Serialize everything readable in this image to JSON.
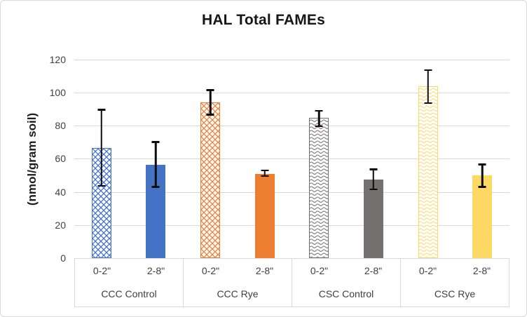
{
  "chart_data": {
    "type": "bar",
    "title": "HAL Total FAMEs",
    "ylabel": "(nmol/gram soil)",
    "ylim": [
      0,
      120
    ],
    "yticks": [
      0,
      20,
      40,
      60,
      80,
      100,
      120
    ],
    "grid": true,
    "legend": "none",
    "categories": [
      "CCC Control 0-2\"",
      "CCC Control 2-8\"",
      "CCC Rye 0-2\"",
      "CCC Rye 2-8\"",
      "CSC Control 0-2\"",
      "CSC Control 2-8\"",
      "CSC Rye 0-2\"",
      "CSC Rye 2-8\""
    ],
    "groups": [
      {
        "label": "CCC Control",
        "color": "#4472C4",
        "bars": [
          {
            "label": "0-2\"",
            "value": 66.5,
            "error_low": 43,
            "error_high": 90,
            "fill": "lattice"
          },
          {
            "label": "2-8\"",
            "value": 56.5,
            "error_low": 42.5,
            "error_high": 70.5,
            "fill": "solid"
          }
        ]
      },
      {
        "label": "CCC Rye",
        "color": "#ED7D31",
        "bars": [
          {
            "label": "0-2\"",
            "value": 94,
            "error_low": 86,
            "error_high": 102,
            "fill": "lattice"
          },
          {
            "label": "2-8\"",
            "value": 51,
            "error_low": 49,
            "error_high": 53.5,
            "fill": "solid"
          }
        ]
      },
      {
        "label": "CSC Control",
        "color": "#767171",
        "bars": [
          {
            "label": "0-2\"",
            "value": 84.5,
            "error_low": 79,
            "error_high": 89.5,
            "fill": "wave"
          },
          {
            "label": "2-8\"",
            "value": 47.5,
            "error_low": 41,
            "error_high": 54,
            "fill": "solid"
          }
        ]
      },
      {
        "label": "CSC Rye",
        "color": "#FFD966",
        "bars": [
          {
            "label": "0-2\"",
            "value": 103.5,
            "error_low": 93,
            "error_high": 114,
            "fill": "wave"
          },
          {
            "label": "2-8\"",
            "value": 50,
            "error_low": 42.5,
            "error_high": 57,
            "fill": "solid"
          }
        ]
      }
    ],
    "colors": {
      "gridline": "#d9d9d9",
      "axis_text": "#404040",
      "error_bar": "#0d0d0d",
      "title_text": "#161616",
      "chart_border": "#d9d9d9",
      "background": "#ffffff"
    }
  }
}
